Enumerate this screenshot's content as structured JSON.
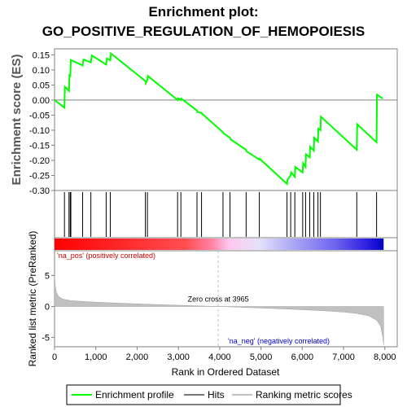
{
  "chart_data": {
    "type": "line",
    "title_line1": "Enrichment plot:",
    "title_line2": "GO_POSITIVE_REGULATION_OF_HEMOPOIESIS",
    "top_panel": {
      "ylabel": "Enrichment score (ES)",
      "ylim": [
        -0.3,
        0.17
      ],
      "yticks": [
        0.15,
        0.1,
        0.05,
        0.0,
        -0.05,
        -0.1,
        -0.15,
        -0.2,
        -0.25,
        -0.3
      ],
      "ytick_labels": [
        "0.15",
        "0.10",
        "0.05",
        "0.00",
        "-0.05",
        "-0.10",
        "-0.15",
        "-0.20",
        "-0.25",
        "-0.30"
      ],
      "series": [
        {
          "name": "Enrichment profile",
          "color": "#00ff00",
          "x": [
            0,
            240,
            250,
            350,
            360,
            380,
            395,
            680,
            700,
            880,
            900,
            1250,
            1270,
            1350,
            1365,
            2200,
            2210,
            2250,
            2260,
            2980,
            2990,
            3060,
            3070,
            3450,
            3460,
            3560,
            3570,
            4080,
            4090,
            4250,
            4260,
            4640,
            4650,
            4960,
            4970,
            5630,
            5640,
            5720,
            5730,
            5820,
            5830,
            6010,
            6020,
            6080,
            6090,
            6180,
            6190,
            6280,
            6290,
            6380,
            6390,
            6440,
            6450,
            7320,
            7330,
            7800,
            7810,
            7950
          ],
          "y": [
            0.0,
            -0.025,
            0.044,
            0.03,
            0.082,
            0.08,
            0.133,
            0.115,
            0.135,
            0.125,
            0.148,
            0.118,
            0.138,
            0.132,
            0.155,
            0.063,
            0.056,
            0.068,
            0.08,
            0.0,
            0.006,
            0.0,
            0.005,
            -0.035,
            -0.04,
            -0.042,
            -0.045,
            -0.107,
            -0.11,
            -0.125,
            -0.13,
            -0.165,
            -0.17,
            -0.198,
            -0.195,
            -0.278,
            -0.265,
            -0.25,
            -0.24,
            -0.255,
            -0.222,
            -0.24,
            -0.21,
            -0.222,
            -0.18,
            -0.19,
            -0.155,
            -0.168,
            -0.125,
            -0.138,
            -0.095,
            -0.1,
            -0.055,
            -0.165,
            -0.08,
            -0.14,
            0.018,
            0.005
          ]
        }
      ]
    },
    "hits_x": [
      240,
      350,
      380,
      395,
      680,
      880,
      1250,
      1350,
      2200,
      2250,
      2980,
      3060,
      3450,
      3560,
      4080,
      4250,
      4640,
      4960,
      5630,
      5720,
      5820,
      6010,
      6080,
      6180,
      6280,
      6380,
      6440,
      7320,
      7800
    ],
    "colorbar_colors": [
      "#ff0000",
      "#ff4f52",
      "#ff85a6",
      "#fec8ec",
      "#e5e2fb",
      "#aeaaf6",
      "#6e65ee",
      "#2d1fdf",
      "#0000c4"
    ],
    "bottom_panel": {
      "ylabel": "Ranked list metric (PreRanked)",
      "xlabel": "Rank in Ordered Dataset",
      "ylim": [
        -6.5,
        9
      ],
      "yticks": [
        5,
        0,
        -5
      ],
      "ytick_labels": [
        "5",
        "0",
        "-5"
      ],
      "xlim": [
        0,
        8300
      ],
      "xticks": [
        0,
        1000,
        2000,
        3000,
        4000,
        5000,
        6000,
        7000,
        8000
      ],
      "xtick_labels": [
        "0",
        "1,000",
        "2,000",
        "3,000",
        "4,000",
        "5,000",
        "6,000",
        "7,000",
        "8,000"
      ],
      "metric_x": [
        0,
        20,
        50,
        100,
        200,
        400,
        700,
        1000,
        1500,
        2000,
        2500,
        3000,
        3500,
        3965,
        4500,
        5000,
        5500,
        6000,
        6500,
        7000,
        7300,
        7600,
        7800,
        7900,
        7950,
        7970
      ],
      "metric_y": [
        5.0,
        3.2,
        2.2,
        1.6,
        1.2,
        0.95,
        0.8,
        0.7,
        0.55,
        0.42,
        0.3,
        0.2,
        0.1,
        0.0,
        -0.12,
        -0.25,
        -0.38,
        -0.52,
        -0.68,
        -0.9,
        -1.1,
        -1.5,
        -2.2,
        -3.2,
        -5.0,
        -6.2
      ],
      "zero_cross_label": "Zero cross at 3965",
      "zero_cross_x": 3965,
      "pos_label": "'na_pos' (positively correlated)",
      "neg_label": "'na_neg' (negatively correlated)"
    },
    "legend": [
      {
        "label": "Enrichment profile",
        "color": "#00ff00"
      },
      {
        "label": "Hits",
        "color": "#777777"
      },
      {
        "label": "Ranking metric scores",
        "color": "#c0c0c0"
      }
    ]
  }
}
